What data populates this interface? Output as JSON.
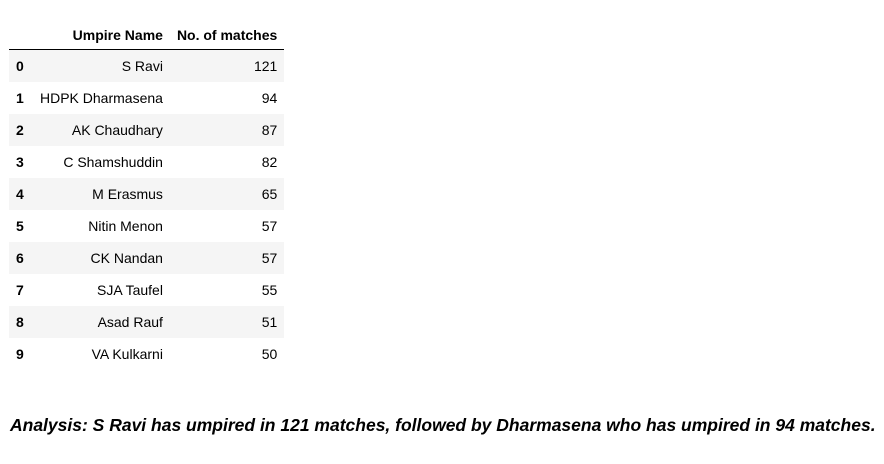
{
  "table": {
    "columns": [
      "",
      "Umpire Name",
      "No. of matches"
    ],
    "rows": [
      {
        "index": "0",
        "name": "S Ravi",
        "matches": "121"
      },
      {
        "index": "1",
        "name": "HDPK Dharmasena",
        "matches": "94"
      },
      {
        "index": "2",
        "name": "AK Chaudhary",
        "matches": "87"
      },
      {
        "index": "3",
        "name": "C Shamshuddin",
        "matches": "82"
      },
      {
        "index": "4",
        "name": "M Erasmus",
        "matches": "65"
      },
      {
        "index": "5",
        "name": "Nitin Menon",
        "matches": "57"
      },
      {
        "index": "6",
        "name": "CK Nandan",
        "matches": "57"
      },
      {
        "index": "7",
        "name": "SJA Taufel",
        "matches": "55"
      },
      {
        "index": "8",
        "name": "Asad Rauf",
        "matches": "51"
      },
      {
        "index": "9",
        "name": "VA Kulkarni",
        "matches": "50"
      }
    ]
  },
  "analysis": "Analysis: S Ravi has umpired in 121 matches, followed by Dharmasena who has umpired in 94 matches."
}
